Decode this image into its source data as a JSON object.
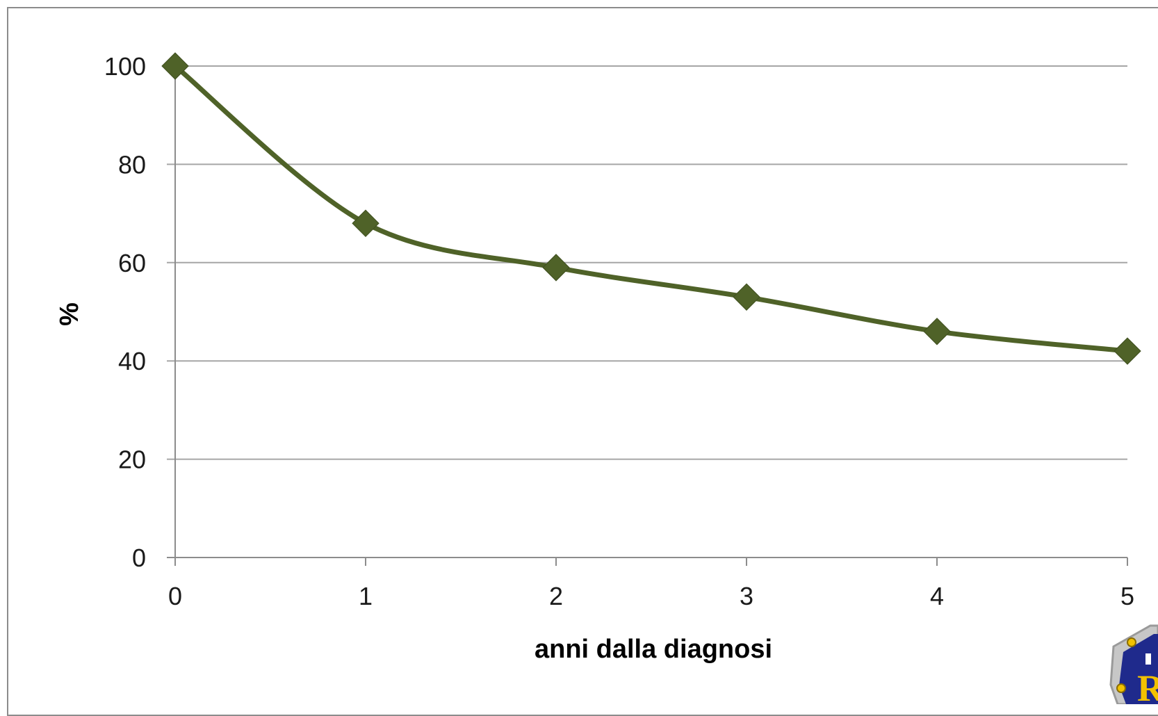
{
  "chart_data": {
    "type": "line",
    "title": "",
    "xlabel": "anni dalla diagnosi",
    "ylabel": "%",
    "x": [
      0,
      1,
      2,
      3,
      4,
      5
    ],
    "series": [
      {
        "values": [
          100,
          68,
          59,
          53,
          46,
          42
        ]
      }
    ],
    "xlim": [
      0,
      5
    ],
    "ylim": [
      0,
      100
    ],
    "xticks": [
      "0",
      "1",
      "2",
      "3",
      "4",
      "5"
    ],
    "yticks": [
      "0",
      "20",
      "40",
      "60",
      "80",
      "100"
    ],
    "grid": "horizontal",
    "legend": "none",
    "marker": "diamond",
    "line_style": "smooth",
    "colors": {
      "series": "#4f6228",
      "grid": "#a6a6a6",
      "axis": "#8c8c8c"
    }
  },
  "logo": {
    "icon": "badge-logo-icon",
    "lettering": "R"
  }
}
